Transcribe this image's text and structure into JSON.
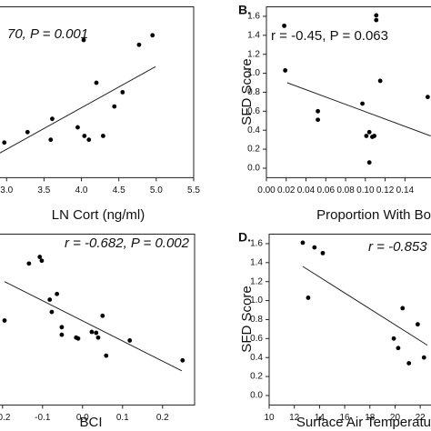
{
  "chart_data": [
    {
      "type": "scatter",
      "annotation": "70, P = 0.001",
      "x_label": "LN Cort (ng/ml)",
      "x": [
        2.97,
        3.28,
        3.59,
        3.61,
        3.95,
        4.04,
        4.1,
        4.03,
        4.2,
        4.29,
        4.44,
        4.55,
        4.77,
        4.95
      ],
      "values": [
        0.27,
        0.38,
        0.3,
        0.52,
        0.43,
        0.34,
        0.3,
        1.35,
        0.9,
        0.34,
        0.65,
        0.8,
        1.3,
        1.4
      ],
      "fit": {
        "x": [
          2.91,
          4.99
        ],
        "y": [
          0.16,
          1.07
        ]
      },
      "xlim": [
        2.9,
        5.5
      ],
      "xticks": [
        {
          "value": 3.0,
          "label": "3.0"
        },
        3.5,
        {
          "value": 4.0,
          "label": "4.0"
        },
        4.5,
        {
          "value": 5.0,
          "label": "5.0"
        },
        5.5
      ],
      "ylim": [
        -0.1,
        1.7
      ],
      "color": "#000000"
    },
    {
      "type": "scatter",
      "panel_label": "B.",
      "annotation": "r = -0.45, P = 0.063",
      "x_label": "Proportion With Bo",
      "y_label": "SFD Score",
      "x": [
        0.018,
        0.019,
        0.052,
        0.052,
        0.097,
        0.101,
        0.104,
        0.104,
        0.107,
        0.109,
        0.111,
        0.111,
        0.115,
        0.163
      ],
      "values": [
        1.5,
        1.03,
        0.6,
        0.51,
        0.68,
        0.34,
        0.38,
        0.06,
        0.33,
        0.34,
        1.61,
        1.56,
        0.92,
        0.75
      ],
      "fit": {
        "x": [
          0.021,
          0.166
        ],
        "y": [
          0.9,
          0.34
        ]
      },
      "xlim": [
        0,
        0.17
      ],
      "xticks": [
        {
          "value": 0,
          "label": "0.00"
        },
        0.02,
        0.04,
        0.06,
        0.08,
        {
          "value": 0.1,
          "label": "0.10"
        },
        0.12,
        0.14
      ],
      "ylim": [
        -0.1,
        1.7
      ],
      "yticks": [
        {
          "value": 0,
          "label": "0.0"
        },
        0.2,
        0.4,
        0.6,
        0.8,
        {
          "value": 1,
          "label": "1.0"
        },
        1.2,
        1.4,
        1.6
      ],
      "color": "#000000"
    },
    {
      "type": "scatter",
      "annotation": "r = -0.682, P = 0.002",
      "x_label": "BCI",
      "x": [
        -0.195,
        -0.134,
        -0.107,
        -0.102,
        -0.082,
        -0.064,
        -0.077,
        -0.052,
        -0.052,
        -0.016,
        -0.011,
        0.023,
        0.034,
        0.039,
        0.05,
        0.059,
        0.118,
        0.25
      ],
      "values": [
        0.79,
        1.39,
        1.46,
        1.42,
        1.01,
        1.07,
        0.88,
        0.72,
        0.64,
        0.61,
        0.6,
        0.67,
        0.66,
        0.61,
        0.84,
        0.42,
        0.58,
        0.37
      ],
      "fit": {
        "x": [
          -0.195,
          0.248
        ],
        "y": [
          1.2,
          0.26
        ]
      },
      "xlim": [
        -0.22,
        0.28
      ],
      "xticks": [
        -0.2,
        -0.1,
        {
          "value": 0,
          "label": "0.0"
        },
        0.1,
        0.2
      ],
      "ylim": [
        -0.1,
        1.7
      ],
      "color": "#000000"
    },
    {
      "type": "scatter",
      "panel_label": "D.",
      "annotation": "r = -0.853",
      "x_label": "Surface Air Temperatu",
      "y_label": "SFD Score",
      "x": [
        12.67,
        13.1,
        13.6,
        14.26,
        19.9,
        20.25,
        20.6,
        21.1,
        21.8,
        22.3
      ],
      "values": [
        1.61,
        1.03,
        1.56,
        1.5,
        0.6,
        0.5,
        0.92,
        0.34,
        0.75,
        0.4
      ],
      "fit": {
        "x": [
          12.67,
          22.56
        ],
        "y": [
          1.36,
          0.53
        ]
      },
      "xlim": [
        10,
        23
      ],
      "xticks": [
        10,
        12,
        14,
        16,
        18,
        20,
        22
      ],
      "ylim": [
        -0.1,
        1.7
      ],
      "yticks": [
        {
          "value": 0,
          "label": "0.0"
        },
        0.2,
        0.4,
        0.6,
        0.8,
        {
          "value": 1,
          "label": "1.0"
        },
        1.2,
        1.4,
        1.6
      ],
      "color": "#000000"
    }
  ]
}
